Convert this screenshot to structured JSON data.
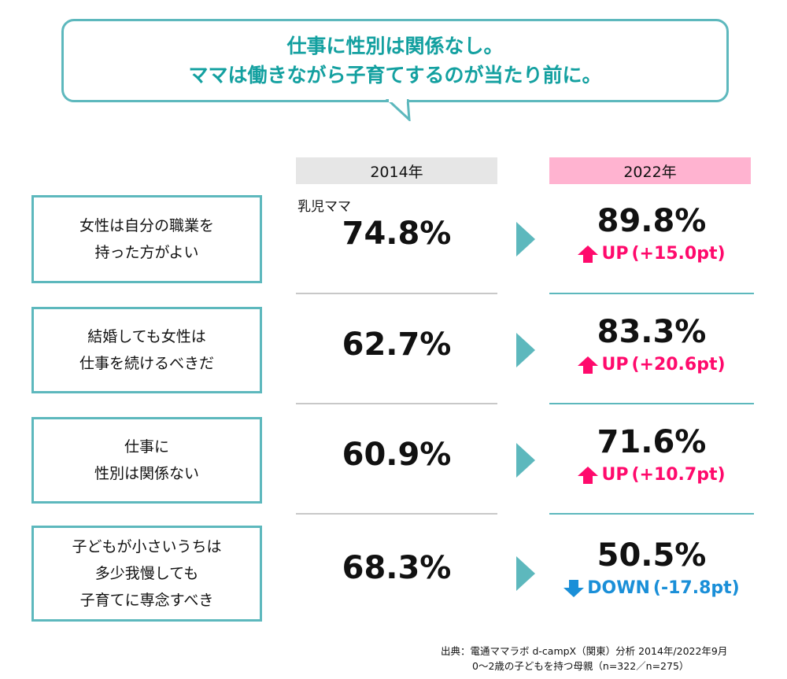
{
  "headline": {
    "line1": "仕事に性別は関係なし。",
    "line2": "ママは働きながら子育てするのが当たり前に。"
  },
  "columns": {
    "y2014": "2014年",
    "y2022": "2022年"
  },
  "sublabel": "乳児ママ",
  "rows": [
    {
      "q1": "女性は自分の職業を",
      "q2": "持った方がよい",
      "q3": "",
      "v2014": "74.8%",
      "v2022": "89.8%",
      "dir": "UP",
      "diff": "(+15.0pt)",
      "color": "#ff0a6c"
    },
    {
      "q1": "結婚しても女性は",
      "q2": "仕事を続けるべきだ",
      "q3": "",
      "v2014": "62.7%",
      "v2022": "83.3%",
      "dir": "UP",
      "diff": "(+20.6pt)",
      "color": "#ff0a6c"
    },
    {
      "q1": "仕事に",
      "q2": "性別は関係ない",
      "q3": "",
      "v2014": "60.9%",
      "v2022": "71.6%",
      "dir": "UP",
      "diff": "(+10.7pt)",
      "color": "#ff0a6c"
    },
    {
      "q1": "子どもが小さいうちは",
      "q2": "多少我慢しても",
      "q3": "子育てに専念すべき",
      "v2014": "68.3%",
      "v2022": "50.5%",
      "dir": "DOWN",
      "diff": "(-17.8pt)",
      "color": "#1a8fd8"
    }
  ],
  "source": {
    "line1": "出典：電通ママラボ d-campX（関東）分析 2014年/2022年9月",
    "line2": "0〜2歳の子どもを持つ母親（n=322／n=275）"
  }
}
